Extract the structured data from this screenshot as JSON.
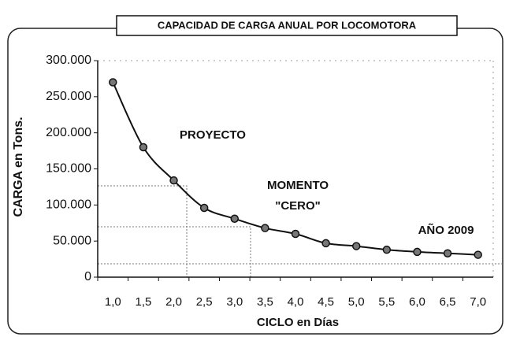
{
  "chart_data": {
    "type": "line",
    "title": "CAPACIDAD DE CARGA ANUAL POR LOCOMOTORA",
    "x_label": "CICLO en Días",
    "y_label": "CARGA en Tons.",
    "categories": [
      "1,0",
      "1,5",
      "2,0",
      "2,5",
      "3,0",
      "3,5",
      "4,0",
      "4,5",
      "5,0",
      "5,5",
      "6,0",
      "6,5",
      "7,0"
    ],
    "values": [
      270000,
      180000,
      134000,
      96000,
      81000,
      68000,
      60000,
      47000,
      43000,
      38000,
      35000,
      33000,
      31000
    ],
    "color": "#111111",
    "ylim": [
      0,
      300000
    ],
    "yticks": [
      0,
      {
        "value": 50000,
        "label": "50.000"
      },
      {
        "value": 100000,
        "label": "100.000"
      },
      {
        "value": 150000,
        "label": "150.000"
      },
      {
        "value": 200000,
        "label": "200.000"
      },
      {
        "value": 250000,
        "label": "250.000"
      },
      {
        "value": 300000,
        "label": "300.000"
      }
    ],
    "grid": false,
    "annotations": [
      "PROYECTO",
      "MOMENTO",
      "\"CERO\"",
      "AÑO 2009"
    ]
  }
}
